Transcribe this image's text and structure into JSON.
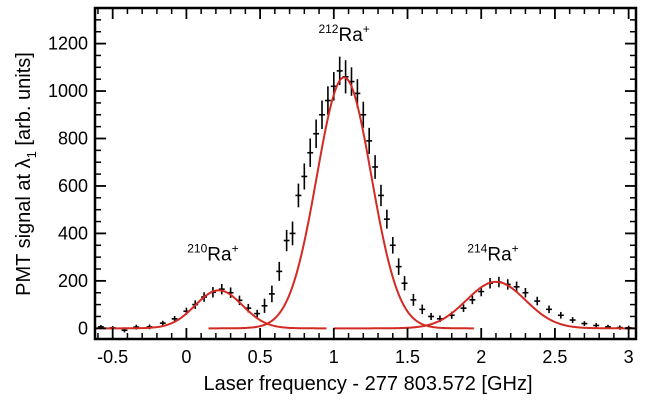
{
  "chart_data": {
    "type": "scatter",
    "xlabel": "Laser frequency - 277 803.572 [GHz]",
    "ylabel": "PMT signal at λ",
    "ylabel_sub": "1",
    "ylabel_units": " [arb. units]",
    "xlim": [
      -0.62,
      3.05
    ],
    "ylim": [
      -45,
      1350
    ],
    "x_ticks": [
      -0.5,
      0,
      0.5,
      1,
      1.5,
      2,
      2.5,
      3
    ],
    "x_tick_labels": [
      "-0.5",
      "0",
      "0.5",
      "1",
      "1.5",
      "2",
      "2.5",
      "3"
    ],
    "y_ticks": [
      0,
      200,
      400,
      600,
      800,
      1000,
      1200
    ],
    "y_tick_labels": [
      "0",
      "200",
      "400",
      "600",
      "800",
      "1000",
      "1200"
    ],
    "grid": false,
    "annotations": [
      {
        "mass": "210",
        "species": "Ra",
        "charge": "+",
        "x": 0.18,
        "y": 285
      },
      {
        "mass": "212",
        "species": "Ra",
        "charge": "+",
        "x": 1.07,
        "y": 1210
      },
      {
        "mass": "214",
        "species": "Ra",
        "charge": "+",
        "x": 2.08,
        "y": 285
      }
    ],
    "series": [
      {
        "type": "points",
        "color": "#000000",
        "points": [
          [
            -0.58,
            6,
            8,
            0.02
          ],
          [
            -0.5,
            2,
            8,
            0.02
          ],
          [
            -0.42,
            -8,
            9,
            0.02
          ],
          [
            -0.34,
            5,
            10,
            0.02
          ],
          [
            -0.25,
            6,
            10,
            0.02
          ],
          [
            -0.16,
            22,
            10,
            0.02
          ],
          [
            -0.08,
            40,
            12,
            0.02
          ],
          [
            0.0,
            72,
            15,
            0.02
          ],
          [
            0.06,
            100,
            18,
            0.02
          ],
          [
            0.12,
            132,
            20,
            0.02
          ],
          [
            0.18,
            152,
            22,
            0.02
          ],
          [
            0.24,
            165,
            22,
            0.02
          ],
          [
            0.3,
            150,
            22,
            0.02
          ],
          [
            0.36,
            118,
            20,
            0.02
          ],
          [
            0.42,
            85,
            18,
            0.02
          ],
          [
            0.48,
            62,
            16,
            0.02
          ],
          [
            0.53,
            95,
            30,
            0.02
          ],
          [
            0.58,
            145,
            35,
            0.02
          ],
          [
            0.63,
            240,
            40,
            0.02
          ],
          [
            0.68,
            370,
            45,
            0.02
          ],
          [
            0.72,
            400,
            50,
            0.02
          ],
          [
            0.76,
            560,
            50,
            0.02
          ],
          [
            0.8,
            640,
            55,
            0.02
          ],
          [
            0.84,
            740,
            60,
            0.02
          ],
          [
            0.88,
            820,
            60,
            0.02
          ],
          [
            0.92,
            900,
            60,
            0.02
          ],
          [
            0.96,
            960,
            60,
            0.02
          ],
          [
            1.0,
            1020,
            60,
            0.02
          ],
          [
            1.04,
            1085,
            60,
            0.02
          ],
          [
            1.08,
            1060,
            70,
            0.02
          ],
          [
            1.12,
            1040,
            60,
            0.02
          ],
          [
            1.16,
            990,
            60,
            0.02
          ],
          [
            1.2,
            900,
            55,
            0.02
          ],
          [
            1.24,
            790,
            55,
            0.02
          ],
          [
            1.28,
            680,
            50,
            0.02
          ],
          [
            1.32,
            560,
            45,
            0.02
          ],
          [
            1.36,
            460,
            40,
            0.02
          ],
          [
            1.4,
            350,
            35,
            0.02
          ],
          [
            1.44,
            260,
            35,
            0.02
          ],
          [
            1.48,
            190,
            30,
            0.02
          ],
          [
            1.54,
            120,
            25,
            0.02
          ],
          [
            1.6,
            80,
            20,
            0.02
          ],
          [
            1.66,
            50,
            15,
            0.02
          ],
          [
            1.72,
            40,
            14,
            0.02
          ],
          [
            1.8,
            55,
            15,
            0.02
          ],
          [
            1.88,
            85,
            16,
            0.02
          ],
          [
            1.94,
            120,
            18,
            0.02
          ],
          [
            2.0,
            155,
            20,
            0.02
          ],
          [
            2.06,
            190,
            22,
            0.02
          ],
          [
            2.12,
            195,
            22,
            0.02
          ],
          [
            2.18,
            185,
            22,
            0.02
          ],
          [
            2.24,
            175,
            22,
            0.02
          ],
          [
            2.3,
            150,
            20,
            0.02
          ],
          [
            2.38,
            115,
            18,
            0.02
          ],
          [
            2.46,
            80,
            16,
            0.02
          ],
          [
            2.54,
            55,
            14,
            0.02
          ],
          [
            2.62,
            35,
            12,
            0.02
          ],
          [
            2.7,
            20,
            10,
            0.02
          ],
          [
            2.78,
            12,
            10,
            0.02
          ],
          [
            2.86,
            6,
            9,
            0.02
          ],
          [
            2.94,
            3,
            9,
            0.02
          ],
          [
            3.0,
            2,
            9,
            0.02
          ]
        ]
      },
      {
        "type": "fit",
        "color": "#d42a24",
        "peaks": [
          {
            "center": 0.22,
            "amp": 160,
            "sigma": 0.16,
            "from": -0.62,
            "to": 0.95
          },
          {
            "center": 1.07,
            "amp": 1058,
            "sigma": 0.185,
            "from": 0.15,
            "to": 1.95
          },
          {
            "center": 2.1,
            "amp": 196,
            "sigma": 0.2,
            "from": 1.0,
            "to": 3.05
          }
        ]
      }
    ]
  }
}
